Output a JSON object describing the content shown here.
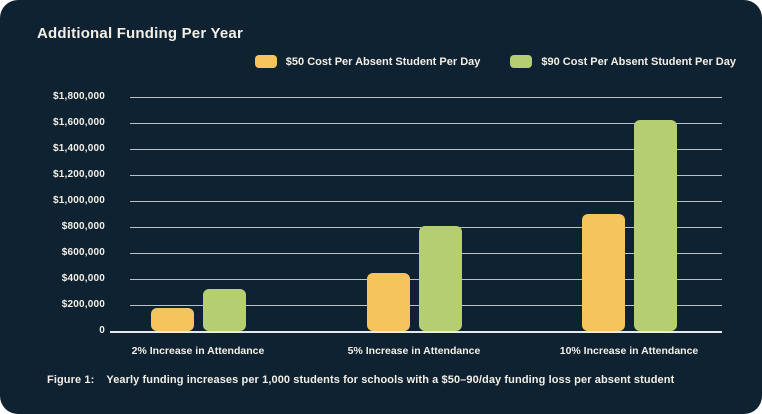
{
  "chart_data": {
    "type": "bar",
    "title": "Additional Funding Per Year",
    "categories": [
      "2% Increase in Attendance",
      "5% Increase in Attendance",
      "10% Increase in Attendance"
    ],
    "series": [
      {
        "name": "$50 Cost Per Absent Student Per Day",
        "color": "#f5c45c",
        "values": [
          180000,
          450000,
          900000
        ]
      },
      {
        "name": "$90 Cost Per Absent Student Per Day",
        "color": "#b4ce70",
        "values": [
          324000,
          810000,
          1620000
        ]
      }
    ],
    "xlabel": "",
    "ylabel": "",
    "ylim": [
      0,
      1800000
    ],
    "ytick_labels": [
      "$1,800,000",
      "$1,600,000",
      "$1,400,000",
      "$1,200,000",
      "$1,000,000",
      "$800,000",
      "$600,000",
      "$400,000",
      "$200,000",
      "0"
    ],
    "grid": true,
    "legend_position": "top-right"
  },
  "caption": {
    "prefix": "Figure 1:",
    "text": "Yearly funding increases per 1,000 students for schools with a $50–90/day funding loss per absent student"
  },
  "colors": {
    "background": "#0f2231",
    "page_behind_corners": "#ffffff",
    "text": "#f3efe6",
    "gridline": "rgba(255,255,255,0.72)",
    "baseline": "rgba(255,255,255,0.9)",
    "bar_50": "#f5c45c",
    "bar_90": "#b4ce70"
  }
}
